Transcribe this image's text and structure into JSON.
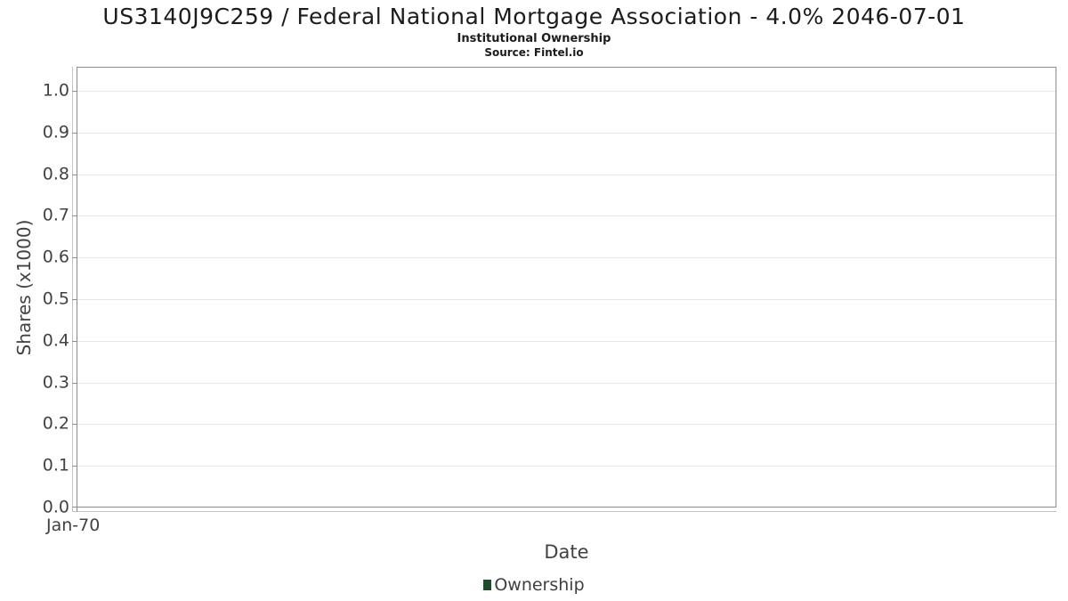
{
  "header": {
    "title": "US3140J9C259 / Federal National Mortgage Association - 4.0% 2046-07-01",
    "subtitle": "Institutional Ownership",
    "source": "Source: Fintel.io"
  },
  "chart_data": {
    "type": "line",
    "title": "US3140J9C259 / Federal National Mortgage Association - 4.0% 2046-07-01",
    "subtitle": "Institutional Ownership",
    "source": "Source: Fintel.io",
    "xlabel": "Date",
    "ylabel": "Shares (x1000)",
    "xticks": [
      "Jan-70"
    ],
    "yticks": [
      "0.0",
      "0.1",
      "0.2",
      "0.3",
      "0.4",
      "0.5",
      "0.6",
      "0.7",
      "0.8",
      "0.9",
      "1.0"
    ],
    "ylim": [
      0,
      1.05
    ],
    "grid": "horizontal",
    "legend": {
      "position": "bottom-center",
      "entries": [
        {
          "label": "Ownership",
          "color": "#1d4d2b"
        }
      ]
    },
    "series": [
      {
        "name": "Ownership",
        "x": [],
        "values": []
      }
    ]
  },
  "colors": {
    "background": "#ffffff",
    "plot_border": "#8c8c8c",
    "gridline": "#e7e7e7",
    "tick_label": "#424242",
    "title_text": "#1c1c1c",
    "legend_marker": "#1d4d2b"
  }
}
